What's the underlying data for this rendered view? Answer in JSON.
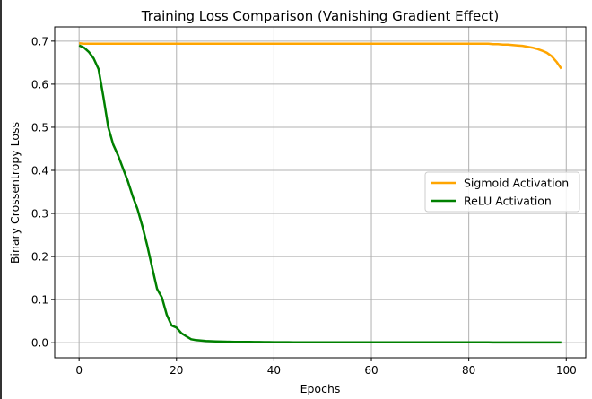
{
  "chart_data": {
    "type": "line",
    "title": "Training Loss Comparison (Vanishing Gradient Effect)",
    "xlabel": "Epochs",
    "ylabel": "Binary Crossentropy Loss",
    "xlim": [
      -5,
      104
    ],
    "ylim": [
      -0.035,
      0.733
    ],
    "xticks": [
      0,
      20,
      40,
      60,
      80,
      100
    ],
    "xtick_labels": [
      "0",
      "20",
      "40",
      "60",
      "80",
      "100"
    ],
    "yticks": [
      0.0,
      0.1,
      0.2,
      0.3,
      0.4,
      0.5,
      0.6,
      0.7
    ],
    "ytick_labels": [
      "0.0",
      "0.1",
      "0.2",
      "0.3",
      "0.4",
      "0.5",
      "0.6",
      "0.7"
    ],
    "grid": true,
    "legend_position": "center-right",
    "series": [
      {
        "name": "Sigmoid Activation",
        "color": "#FFA500",
        "values": [
          0.695,
          0.694,
          0.694,
          0.694,
          0.694,
          0.694,
          0.694,
          0.694,
          0.694,
          0.694,
          0.694,
          0.694,
          0.694,
          0.694,
          0.694,
          0.694,
          0.694,
          0.694,
          0.694,
          0.694,
          0.694,
          0.694,
          0.694,
          0.694,
          0.694,
          0.694,
          0.694,
          0.694,
          0.694,
          0.694,
          0.694,
          0.694,
          0.694,
          0.694,
          0.694,
          0.694,
          0.694,
          0.694,
          0.694,
          0.694,
          0.694,
          0.694,
          0.694,
          0.694,
          0.694,
          0.694,
          0.694,
          0.694,
          0.694,
          0.694,
          0.694,
          0.694,
          0.694,
          0.694,
          0.694,
          0.694,
          0.694,
          0.694,
          0.694,
          0.694,
          0.694,
          0.694,
          0.694,
          0.694,
          0.694,
          0.694,
          0.694,
          0.694,
          0.694,
          0.694,
          0.694,
          0.694,
          0.694,
          0.694,
          0.694,
          0.694,
          0.694,
          0.694,
          0.694,
          0.694,
          0.694,
          0.694,
          0.694,
          0.694,
          0.694,
          0.693,
          0.693,
          0.692,
          0.692,
          0.691,
          0.69,
          0.689,
          0.687,
          0.685,
          0.682,
          0.678,
          0.673,
          0.665,
          0.652,
          0.636
        ]
      },
      {
        "name": "ReLU Activation",
        "color": "#008000",
        "values": [
          0.69,
          0.685,
          0.675,
          0.66,
          0.635,
          0.57,
          0.5,
          0.46,
          0.435,
          0.405,
          0.375,
          0.34,
          0.31,
          0.27,
          0.225,
          0.175,
          0.125,
          0.105,
          0.065,
          0.04,
          0.035,
          0.022,
          0.015,
          0.008,
          0.006,
          0.005,
          0.004,
          0.0035,
          0.003,
          0.0027,
          0.0025,
          0.0023,
          0.0021,
          0.002,
          0.0019,
          0.0018,
          0.0017,
          0.0016,
          0.0015,
          0.0014,
          0.0013,
          0.0013,
          0.0012,
          0.0012,
          0.0011,
          0.001,
          0.001,
          0.001,
          0.001,
          0.001,
          0.001,
          0.001,
          0.001,
          0.001,
          0.001,
          0.0009,
          0.0009,
          0.0009,
          0.0009,
          0.0009,
          0.0009,
          0.0009,
          0.0009,
          0.0009,
          0.0009,
          0.0008,
          0.0008,
          0.0008,
          0.0008,
          0.0008,
          0.0008,
          0.0008,
          0.0008,
          0.0008,
          0.0008,
          0.0007,
          0.0007,
          0.0007,
          0.0007,
          0.0007,
          0.0007,
          0.0007,
          0.0007,
          0.0007,
          0.0007,
          0.0006,
          0.0006,
          0.0006,
          0.0006,
          0.0006,
          0.0006,
          0.0006,
          0.0006,
          0.0006,
          0.0006,
          0.0006,
          0.0006,
          0.0006,
          0.0006,
          0.0006
        ]
      }
    ]
  }
}
